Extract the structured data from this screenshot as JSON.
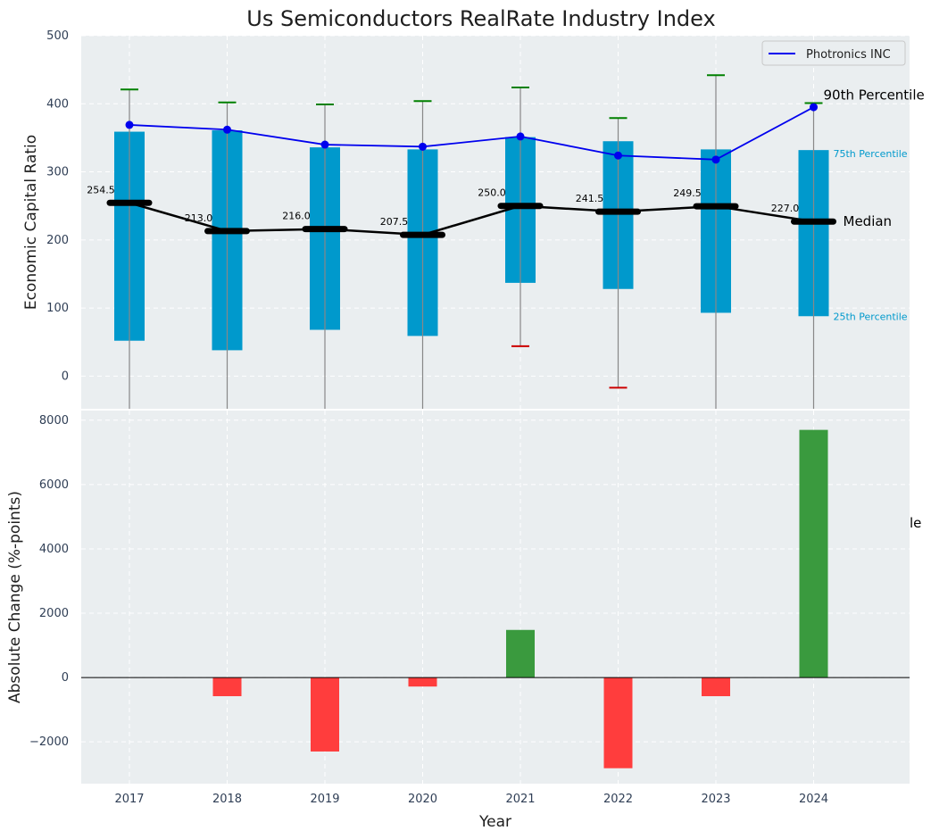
{
  "chart_data": [
    {
      "type": "box-line",
      "title": "Us Semiconductors RealRate Industry Index",
      "ylabel": "Economic Capital Ratio",
      "ylim": [
        -48,
        500
      ],
      "yticks": [
        0,
        100,
        200,
        300,
        400,
        500
      ],
      "categories": [
        "2017",
        "2018",
        "2019",
        "2020",
        "2021",
        "2022",
        "2023",
        "2024"
      ],
      "p25": [
        52,
        38,
        68,
        59,
        137,
        128,
        93,
        88
      ],
      "p75": [
        359,
        361,
        336,
        333,
        351,
        345,
        333,
        332
      ],
      "median": [
        254.5,
        213.0,
        216.0,
        207.5,
        250.0,
        241.5,
        249.5,
        227.0
      ],
      "median_labels": [
        "254.5",
        "213.0",
        "216.0",
        "207.5",
        "250.0",
        "241.5",
        "249.5",
        "227.0"
      ],
      "p90": [
        421,
        402,
        399,
        404,
        424,
        379,
        442,
        401
      ],
      "p10": [
        null,
        null,
        null,
        null,
        44,
        -17,
        null,
        null
      ],
      "series": [
        {
          "name": "Photronics INC",
          "values": [
            369,
            362,
            340,
            337,
            352,
            324,
            318,
            395
          ],
          "color": "#0000ee"
        }
      ],
      "annotations": {
        "p90": "90th Percentile",
        "p75": "75th Percentile",
        "median": "Median",
        "p25": "25th Percentile"
      },
      "legend": "top-right",
      "grid": true,
      "colors": {
        "box": "#0099cc",
        "median": "#000000",
        "p90_cap": "#008000",
        "p10_cap": "#cc0000",
        "background": "#eaeef0"
      }
    },
    {
      "type": "bar",
      "xlabel": "Year",
      "ylabel": "Absolute Change (%-points)",
      "ylim": [
        -3300,
        8300
      ],
      "yticks": [
        -2000,
        0,
        2000,
        4000,
        6000,
        8000
      ],
      "ytick_labels": [
        "−2000",
        "0",
        "2000",
        "4000",
        "6000",
        "8000"
      ],
      "categories": [
        "2017",
        "2018",
        "2019",
        "2020",
        "2021",
        "2022",
        "2023",
        "2024"
      ],
      "values": [
        0,
        -580,
        -2300,
        -280,
        1480,
        -2820,
        -580,
        7700
      ],
      "grid": true,
      "colors": {
        "positive": "#3a9a3e",
        "negative": "#ff3d3d",
        "background": "#eaeef0"
      },
      "stray_text": "le"
    }
  ]
}
